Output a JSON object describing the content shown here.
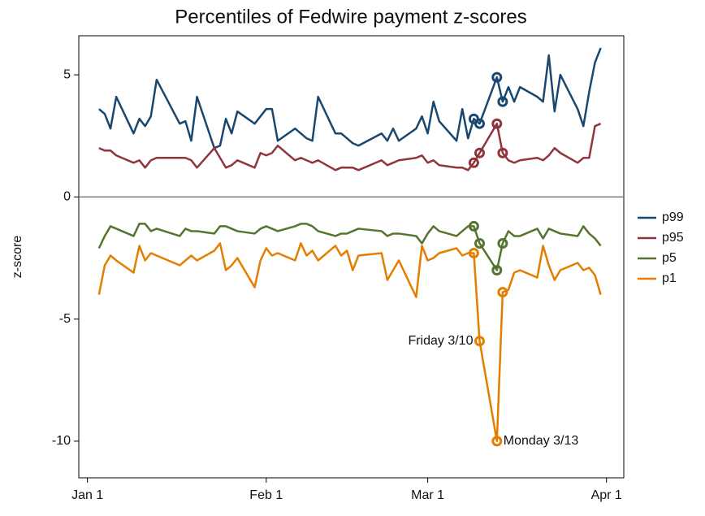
{
  "chart_data": {
    "type": "line",
    "title": "Percentiles of Fedwire payment z-scores",
    "ylabel": "z-score",
    "x": [
      2,
      3,
      4,
      5,
      8,
      9,
      10,
      11,
      12,
      16,
      17,
      18,
      19,
      22,
      23,
      24,
      25,
      26,
      29,
      30,
      31,
      32,
      33,
      36,
      37,
      38,
      39,
      40,
      43,
      44,
      45,
      46,
      47,
      51,
      52,
      53,
      54,
      57,
      58,
      59,
      60,
      61,
      64,
      65,
      66,
      67,
      68,
      71,
      72,
      73,
      74,
      75,
      78,
      79,
      80,
      81,
      82,
      85,
      86,
      87,
      88,
      89
    ],
    "series": [
      {
        "name": "p99",
        "color": "#1a476f",
        "values": [
          3.6,
          3.4,
          2.8,
          4.1,
          2.6,
          3.2,
          2.9,
          3.3,
          4.8,
          3.0,
          3.1,
          2.3,
          4.1,
          2.0,
          2.1,
          3.2,
          2.6,
          3.5,
          3.0,
          3.3,
          3.6,
          3.6,
          2.3,
          2.8,
          2.6,
          2.4,
          2.3,
          4.1,
          2.6,
          2.6,
          2.4,
          2.2,
          2.1,
          2.6,
          2.3,
          2.8,
          2.3,
          2.8,
          3.3,
          2.6,
          3.9,
          3.1,
          2.3,
          3.6,
          2.4,
          3.2,
          3.0,
          4.9,
          3.9,
          4.5,
          3.9,
          4.5,
          4.1,
          3.9,
          5.8,
          3.5,
          5.0,
          3.6,
          2.9,
          4.3,
          5.5,
          6.1
        ]
      },
      {
        "name": "p95",
        "color": "#90353b",
        "values": [
          2.0,
          1.9,
          1.9,
          1.7,
          1.4,
          1.5,
          1.2,
          1.5,
          1.6,
          1.6,
          1.6,
          1.5,
          1.2,
          2.0,
          1.6,
          1.2,
          1.3,
          1.5,
          1.2,
          1.8,
          1.7,
          1.8,
          2.1,
          1.5,
          1.6,
          1.5,
          1.4,
          1.5,
          1.1,
          1.2,
          1.2,
          1.2,
          1.1,
          1.5,
          1.3,
          1.4,
          1.5,
          1.6,
          1.7,
          1.4,
          1.5,
          1.3,
          1.2,
          1.2,
          1.1,
          1.4,
          1.8,
          3.0,
          1.8,
          1.5,
          1.4,
          1.5,
          1.6,
          1.5,
          1.7,
          2.0,
          1.8,
          1.4,
          1.6,
          1.6,
          2.9,
          3.0
        ]
      },
      {
        "name": "p5",
        "color": "#55752f",
        "values": [
          -2.1,
          -1.6,
          -1.2,
          -1.3,
          -1.6,
          -1.1,
          -1.1,
          -1.4,
          -1.3,
          -1.6,
          -1.3,
          -1.4,
          -1.4,
          -1.5,
          -1.2,
          -1.2,
          -1.3,
          -1.4,
          -1.5,
          -1.3,
          -1.2,
          -1.3,
          -1.4,
          -1.2,
          -1.1,
          -1.1,
          -1.2,
          -1.4,
          -1.6,
          -1.5,
          -1.5,
          -1.4,
          -1.3,
          -1.4,
          -1.6,
          -1.5,
          -1.5,
          -1.6,
          -1.9,
          -1.5,
          -1.2,
          -1.4,
          -1.6,
          -1.4,
          -1.2,
          -1.2,
          -1.9,
          -3.0,
          -1.9,
          -1.4,
          -1.6,
          -1.6,
          -1.3,
          -1.7,
          -1.3,
          -1.4,
          -1.5,
          -1.6,
          -1.2,
          -1.5,
          -1.7,
          -2.0
        ]
      },
      {
        "name": "p1",
        "color": "#e37e00",
        "values": [
          -4.0,
          -2.8,
          -2.4,
          -2.6,
          -3.1,
          -2.0,
          -2.6,
          -2.3,
          -2.4,
          -2.8,
          -2.6,
          -2.4,
          -2.6,
          -2.2,
          -1.9,
          -3.0,
          -2.8,
          -2.5,
          -3.7,
          -2.6,
          -2.1,
          -2.4,
          -2.3,
          -2.6,
          -1.9,
          -2.4,
          -2.2,
          -2.6,
          -2.0,
          -2.4,
          -2.2,
          -3.0,
          -2.4,
          -2.3,
          -3.4,
          -3.0,
          -2.6,
          -4.1,
          -2.0,
          -2.6,
          -2.5,
          -2.3,
          -2.1,
          -2.4,
          -2.3,
          -2.3,
          -5.9,
          -10.0,
          -3.9,
          -3.8,
          -3.1,
          -3.0,
          -3.3,
          -2.0,
          -2.8,
          -3.4,
          -3.0,
          -2.7,
          -3.0,
          -2.9,
          -3.2,
          -4.0
        ]
      }
    ],
    "circled_x": [
      67,
      68,
      71,
      72
    ],
    "annotations": [
      "Friday 3/10",
      "Monday 3/13"
    ],
    "xlim": [
      -1.5,
      93
    ],
    "xticks": [
      {
        "value": 0,
        "label": "Jan 1"
      },
      {
        "value": 31,
        "label": "Feb 1"
      },
      {
        "value": 59,
        "label": "Mar 1"
      },
      {
        "value": 90,
        "label": "Apr 1"
      }
    ],
    "ylim": [
      -11.5,
      6.6
    ],
    "yticks": [
      -10,
      -5,
      0,
      5
    ],
    "zero_line": true,
    "grid": false,
    "legend": "right"
  }
}
